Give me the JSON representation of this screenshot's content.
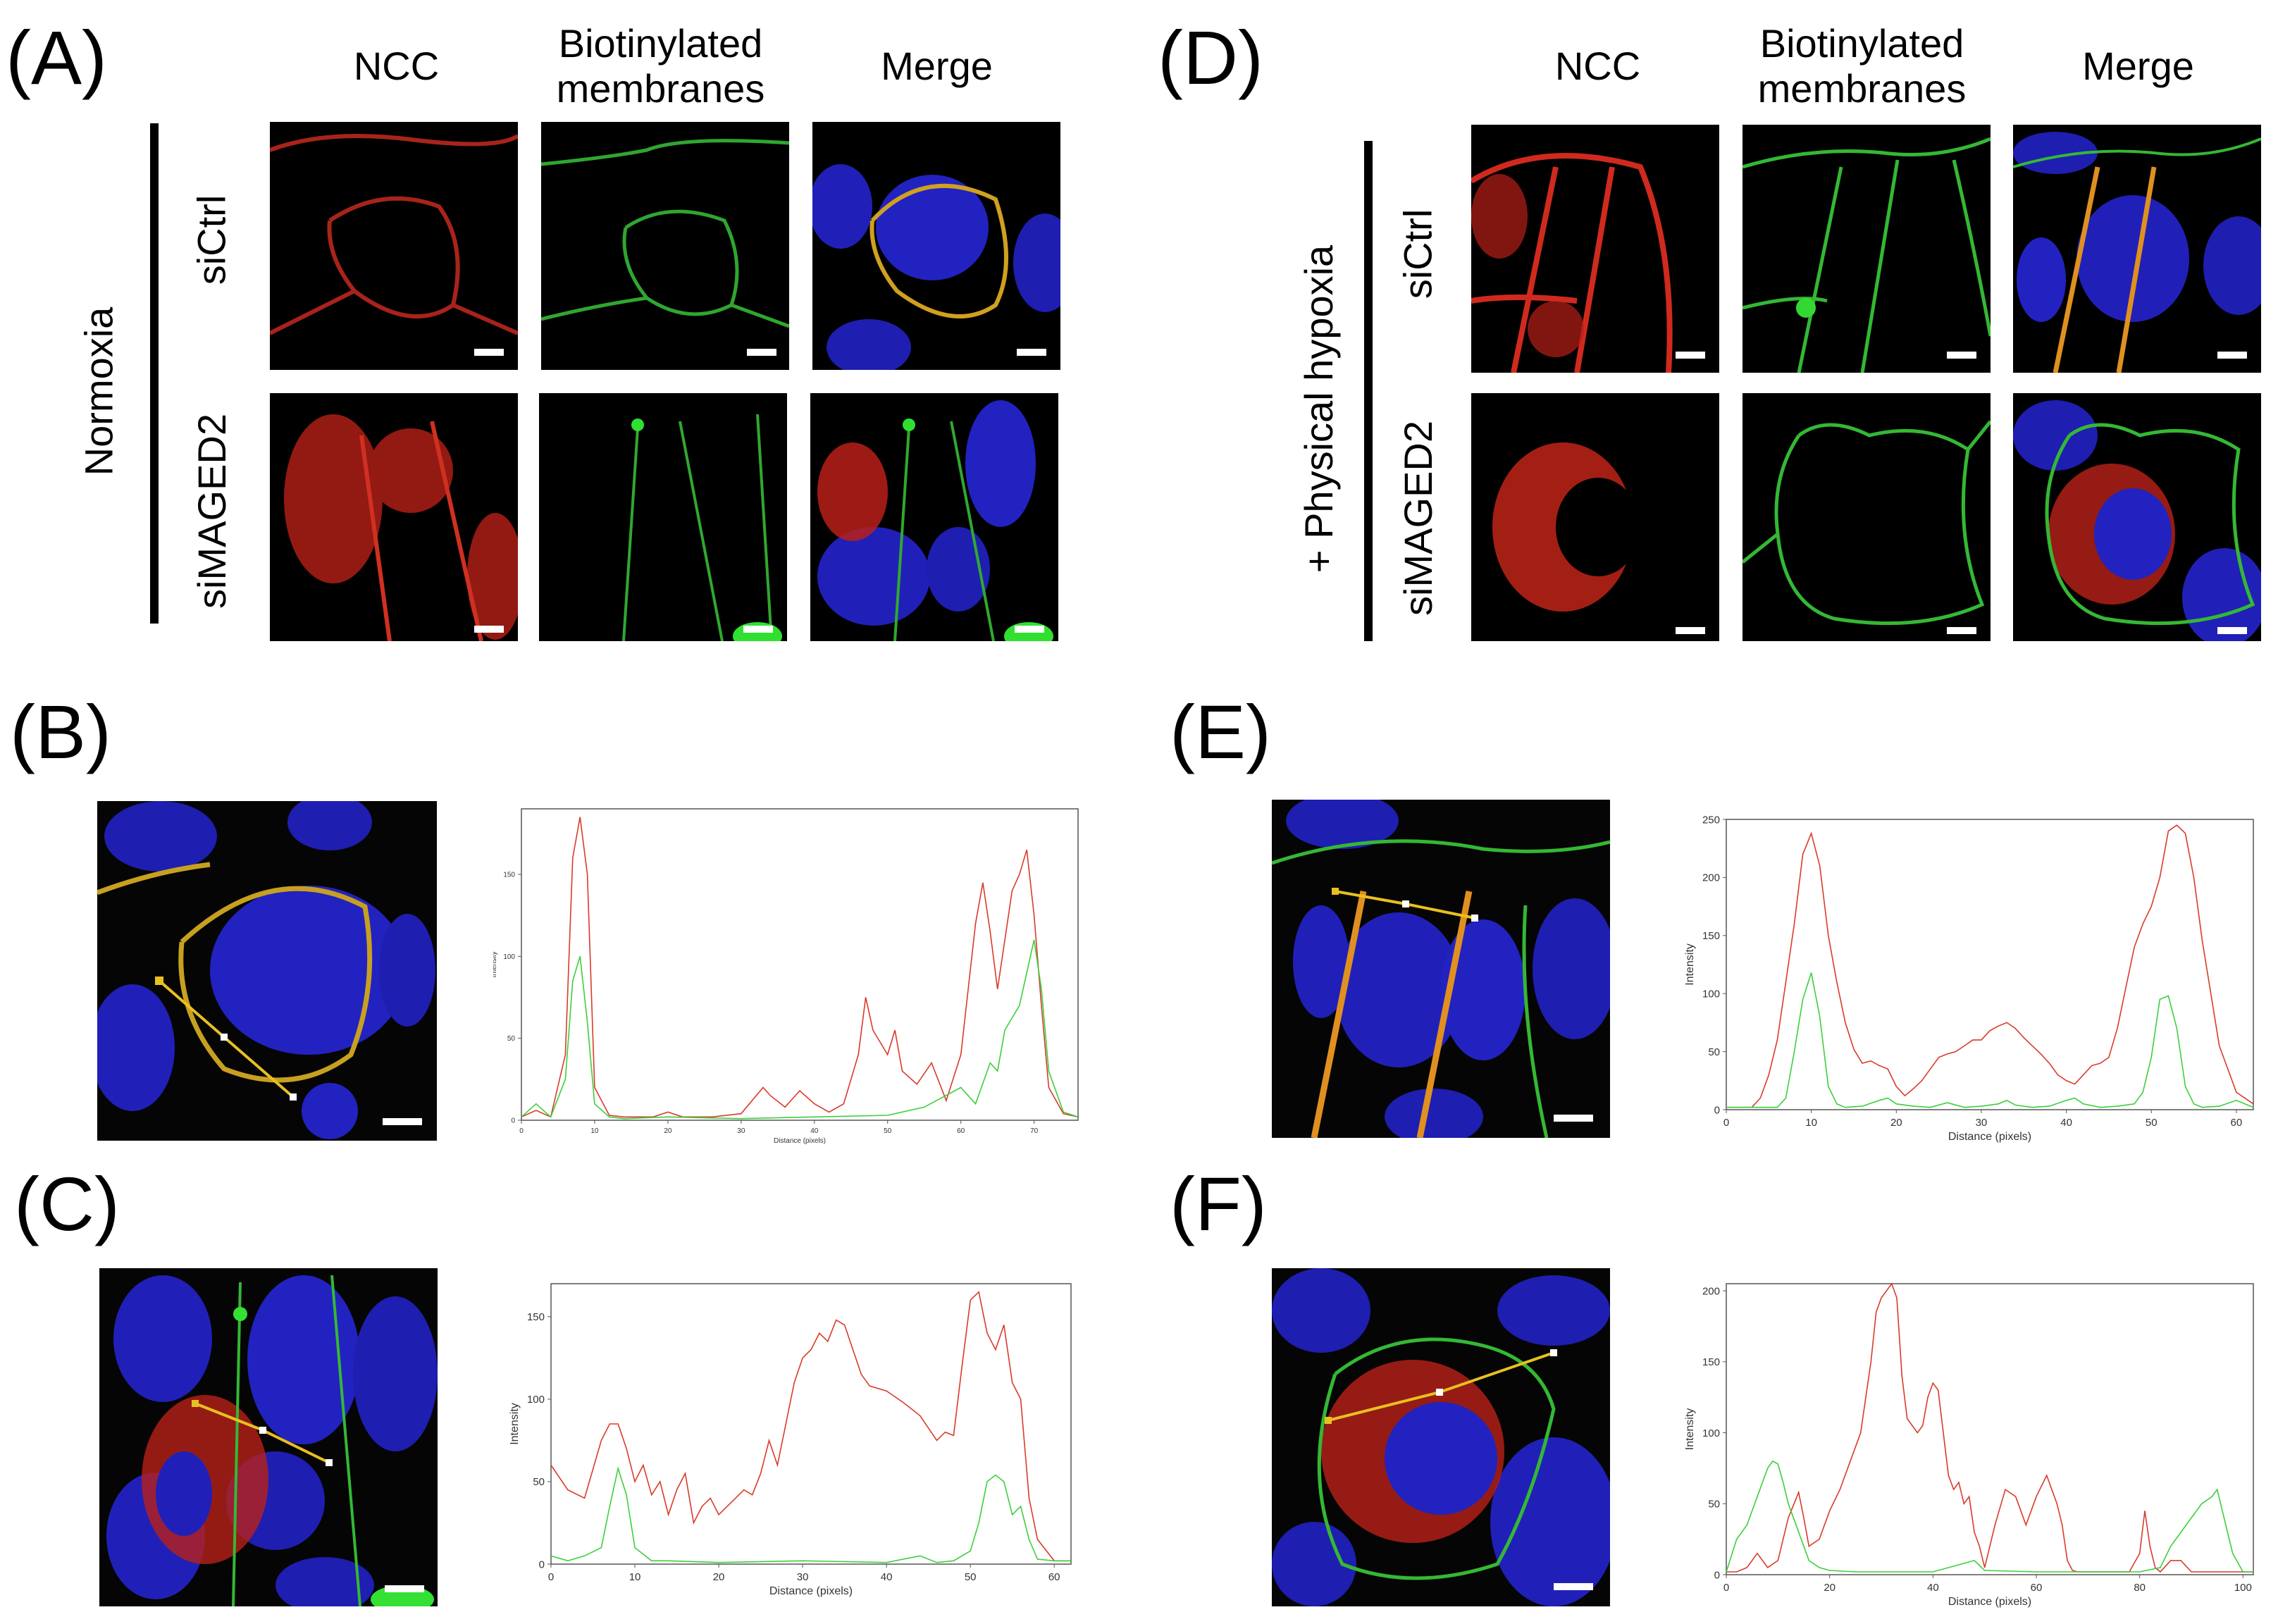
{
  "panels": {
    "A": {
      "letter": "(A)",
      "columns": [
        "NCC",
        "Biotinylated\nmembranes",
        "Merge"
      ],
      "condition": "Normoxia",
      "rows": [
        "siCtrl",
        "siMAGED2"
      ]
    },
    "B": {
      "letter": "(B)"
    },
    "C": {
      "letter": "(C)"
    },
    "D": {
      "letter": "(D)",
      "columns": [
        "NCC",
        "Biotinylated\nmembranes",
        "Merge"
      ],
      "condition": "+ Physical hypoxia",
      "rows": [
        "siCtrl",
        "siMAGED2"
      ]
    },
    "E": {
      "letter": "(E)"
    },
    "F": {
      "letter": "(F)"
    }
  },
  "colors": {
    "ncc_red": "#d93b2b",
    "membrane_green": "#3ccf3c",
    "nucleus_blue": "#2020b8",
    "line_profile_yellow": "#e8c020"
  },
  "chart_data": [
    {
      "panel": "B",
      "type": "line",
      "xlabel": "Distance (pixels)",
      "ylabel": "Intensity",
      "xlim": [
        0,
        76
      ],
      "ylim": [
        0,
        190
      ],
      "xticks": [
        0,
        10,
        20,
        30,
        40,
        50,
        60,
        70
      ],
      "yticks": [
        0,
        50,
        100,
        150
      ],
      "series": [
        {
          "name": "NCC",
          "color": "#d93b2b",
          "x": [
            0,
            2,
            4,
            6,
            7,
            8,
            9,
            10,
            12,
            14,
            18,
            20,
            22,
            26,
            30,
            33,
            34,
            36,
            38,
            40,
            42,
            44,
            46,
            47,
            48,
            50,
            51,
            52,
            54,
            56,
            58,
            60,
            62,
            63,
            64,
            65,
            66,
            67,
            68,
            69,
            70,
            71,
            72,
            74,
            76
          ],
          "y": [
            2,
            6,
            2,
            40,
            160,
            185,
            150,
            20,
            3,
            2,
            2,
            5,
            2,
            2,
            4,
            20,
            15,
            8,
            18,
            10,
            5,
            10,
            40,
            75,
            55,
            40,
            55,
            30,
            22,
            35,
            12,
            40,
            120,
            145,
            115,
            80,
            110,
            140,
            150,
            165,
            125,
            70,
            20,
            4,
            2
          ]
        },
        {
          "name": "Biotinylated membranes",
          "color": "#3ccf3c",
          "x": [
            0,
            2,
            4,
            6,
            7,
            8,
            9,
            10,
            12,
            14,
            20,
            30,
            40,
            50,
            55,
            60,
            62,
            64,
            65,
            66,
            68,
            69,
            70,
            71,
            72,
            74,
            76
          ],
          "y": [
            2,
            10,
            2,
            25,
            85,
            100,
            60,
            10,
            2,
            1,
            2,
            1,
            2,
            3,
            8,
            20,
            10,
            35,
            30,
            55,
            70,
            90,
            110,
            80,
            30,
            5,
            2
          ]
        }
      ]
    },
    {
      "panel": "C",
      "type": "line",
      "xlabel": "Distance (pixels)",
      "ylabel": "Intensity",
      "xlim": [
        0,
        62
      ],
      "ylim": [
        0,
        170
      ],
      "xticks": [
        0,
        10,
        20,
        30,
        40,
        50,
        60
      ],
      "yticks": [
        0,
        50,
        100,
        150
      ],
      "series": [
        {
          "name": "NCC",
          "color": "#d93b2b",
          "x": [
            0,
            2,
            4,
            6,
            7,
            8,
            9,
            10,
            11,
            12,
            13,
            14,
            15,
            16,
            17,
            18,
            19,
            20,
            21,
            22,
            23,
            24,
            25,
            26,
            27,
            28,
            29,
            30,
            31,
            32,
            33,
            34,
            35,
            36,
            37,
            38,
            40,
            42,
            44,
            46,
            47,
            48,
            49,
            50,
            51,
            52,
            53,
            54,
            55,
            56,
            57,
            58,
            60,
            62
          ],
          "y": [
            60,
            45,
            40,
            75,
            85,
            85,
            70,
            50,
            60,
            42,
            50,
            30,
            45,
            55,
            25,
            35,
            40,
            30,
            35,
            40,
            45,
            42,
            55,
            75,
            60,
            85,
            110,
            125,
            130,
            140,
            135,
            148,
            145,
            130,
            115,
            108,
            105,
            98,
            90,
            75,
            80,
            78,
            120,
            160,
            165,
            140,
            130,
            145,
            110,
            100,
            40,
            15,
            2,
            2
          ]
        },
        {
          "name": "Biotinylated membranes",
          "color": "#3ccf3c",
          "x": [
            0,
            2,
            4,
            6,
            7,
            8,
            9,
            10,
            12,
            14,
            20,
            30,
            40,
            44,
            46,
            48,
            50,
            51,
            52,
            53,
            54,
            55,
            56,
            57,
            58,
            60,
            62
          ],
          "y": [
            5,
            2,
            5,
            10,
            35,
            58,
            42,
            10,
            2,
            2,
            1,
            2,
            1,
            5,
            1,
            2,
            8,
            25,
            50,
            54,
            50,
            30,
            35,
            15,
            3,
            2,
            2
          ]
        }
      ]
    },
    {
      "panel": "E",
      "type": "line",
      "xlabel": "Distance (pixels)",
      "ylabel": "Intensity",
      "xlim": [
        0,
        62
      ],
      "ylim": [
        0,
        250
      ],
      "xticks": [
        0,
        10,
        20,
        30,
        40,
        50,
        60
      ],
      "yticks": [
        0,
        50,
        100,
        150,
        200,
        250
      ],
      "series": [
        {
          "name": "NCC",
          "color": "#d93b2b",
          "x": [
            0,
            3,
            4,
            5,
            6,
            7,
            8,
            9,
            10,
            11,
            12,
            13,
            14,
            15,
            16,
            17,
            18,
            19,
            20,
            21,
            22,
            23,
            24,
            25,
            26,
            27,
            28,
            29,
            30,
            31,
            32,
            33,
            34,
            35,
            36,
            37,
            38,
            39,
            40,
            41,
            42,
            43,
            44,
            45,
            46,
            47,
            48,
            49,
            50,
            51,
            52,
            53,
            54,
            55,
            56,
            57,
            58,
            60,
            62
          ],
          "y": [
            2,
            2,
            10,
            30,
            60,
            110,
            160,
            220,
            238,
            210,
            150,
            110,
            75,
            52,
            40,
            42,
            38,
            35,
            20,
            12,
            18,
            25,
            35,
            45,
            48,
            50,
            55,
            60,
            60,
            68,
            72,
            75,
            70,
            62,
            55,
            48,
            40,
            30,
            25,
            22,
            30,
            38,
            40,
            45,
            70,
            105,
            140,
            160,
            175,
            200,
            240,
            245,
            238,
            200,
            145,
            100,
            55,
            15,
            5
          ]
        },
        {
          "name": "Biotinylated membranes",
          "color": "#3ccf3c",
          "x": [
            0,
            3,
            6,
            7,
            8,
            9,
            10,
            11,
            12,
            13,
            14,
            16,
            18,
            19,
            20,
            22,
            24,
            26,
            28,
            30,
            32,
            33,
            34,
            36,
            38,
            40,
            41,
            42,
            44,
            46,
            48,
            49,
            50,
            51,
            52,
            53,
            54,
            55,
            56,
            58,
            60,
            62
          ],
          "y": [
            2,
            2,
            2,
            10,
            50,
            95,
            118,
            80,
            20,
            5,
            2,
            3,
            8,
            10,
            5,
            3,
            2,
            6,
            2,
            3,
            5,
            8,
            4,
            2,
            3,
            8,
            10,
            5,
            2,
            3,
            5,
            15,
            45,
            95,
            98,
            70,
            20,
            5,
            2,
            3,
            8,
            2
          ]
        }
      ]
    },
    {
      "panel": "F",
      "type": "line",
      "xlabel": "Distance (pixels)",
      "ylabel": "Intensity",
      "xlim": [
        0,
        102
      ],
      "ylim": [
        0,
        205
      ],
      "xticks": [
        0,
        20,
        40,
        60,
        80,
        100
      ],
      "yticks": [
        0,
        50,
        100,
        150,
        200
      ],
      "series": [
        {
          "name": "NCC",
          "color": "#d93b2b",
          "x": [
            0,
            2,
            4,
            6,
            8,
            10,
            12,
            14,
            15,
            16,
            18,
            20,
            22,
            24,
            26,
            28,
            29,
            30,
            31,
            32,
            33,
            34,
            35,
            36,
            37,
            38,
            39,
            40,
            41,
            42,
            43,
            44,
            45,
            46,
            47,
            48,
            49,
            50,
            52,
            54,
            56,
            58,
            60,
            62,
            64,
            65,
            66,
            67,
            68,
            69,
            70,
            72,
            74,
            76,
            78,
            80,
            81,
            82,
            83,
            84,
            86,
            88,
            90,
            92,
            94,
            96,
            98,
            100,
            102
          ],
          "y": [
            2,
            2,
            5,
            15,
            5,
            10,
            40,
            58,
            40,
            20,
            25,
            45,
            60,
            80,
            100,
            150,
            185,
            195,
            200,
            205,
            195,
            140,
            110,
            105,
            100,
            105,
            125,
            135,
            130,
            100,
            70,
            60,
            65,
            50,
            55,
            30,
            20,
            5,
            35,
            60,
            55,
            35,
            55,
            70,
            50,
            35,
            10,
            3,
            2,
            2,
            2,
            2,
            2,
            2,
            2,
            15,
            45,
            20,
            5,
            2,
            10,
            10,
            2,
            2,
            2,
            2,
            2,
            2,
            2
          ]
        },
        {
          "name": "Biotinylated membranes",
          "color": "#3ccf3c",
          "x": [
            0,
            2,
            4,
            6,
            8,
            9,
            10,
            11,
            12,
            14,
            16,
            18,
            20,
            25,
            30,
            40,
            48,
            50,
            60,
            70,
            80,
            84,
            86,
            88,
            90,
            92,
            94,
            95,
            96,
            98,
            100,
            102
          ],
          "y": [
            2,
            25,
            35,
            55,
            75,
            80,
            78,
            65,
            50,
            30,
            10,
            5,
            3,
            2,
            2,
            2,
            10,
            3,
            2,
            2,
            2,
            5,
            20,
            30,
            40,
            50,
            55,
            60,
            45,
            15,
            2,
            2
          ]
        }
      ]
    }
  ]
}
